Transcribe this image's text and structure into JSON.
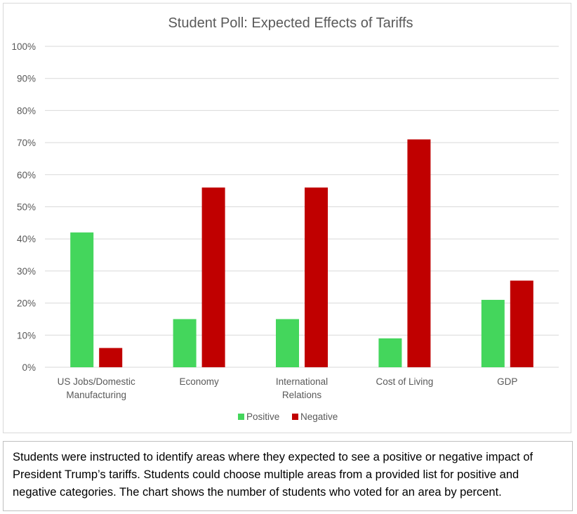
{
  "chart_data": {
    "type": "bar",
    "title": "Student Poll: Expected Effects of Tariffs",
    "categories": [
      [
        "US Jobs/Domestic",
        "Manufacturing"
      ],
      [
        "Economy"
      ],
      [
        "International",
        "Relations"
      ],
      [
        "Cost of Living"
      ],
      [
        "GDP"
      ]
    ],
    "series": [
      {
        "name": "Positive",
        "color": "#44d65c",
        "values": [
          42,
          15,
          15,
          9,
          21
        ]
      },
      {
        "name": "Negative",
        "color": "#c00000",
        "values": [
          6,
          56,
          56,
          71,
          27
        ]
      }
    ],
    "yticks": [
      "0%",
      "10%",
      "20%",
      "30%",
      "40%",
      "50%",
      "60%",
      "70%",
      "80%",
      "90%",
      "100%"
    ],
    "ylim": [
      0,
      100
    ],
    "grid": true,
    "legend_position": "bottom"
  },
  "caption": "Students were instructed to identify areas where they expected to see a positive or negative impact of President Trump’s tariffs. Students could choose multiple areas from a provided list for positive and negative categories. The chart shows the number of students who voted for an area by percent."
}
